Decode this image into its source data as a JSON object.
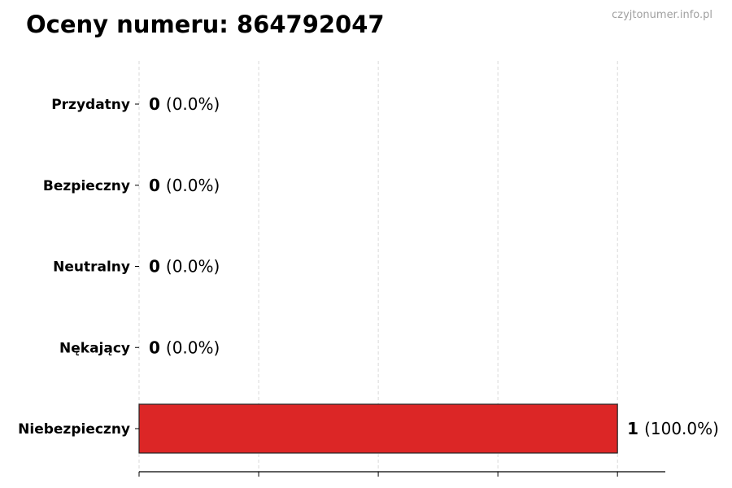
{
  "title": "Oceny numeru: 864792047",
  "watermark": "czyjtonumer.info.pl",
  "chart_data": {
    "type": "bar",
    "orientation": "horizontal",
    "title": "Oceny numeru: 864792047",
    "categories": [
      "Przydatny",
      "Bezpieczny",
      "Neutralny",
      "Nękający",
      "Niebezpieczny"
    ],
    "values": [
      0,
      0,
      0,
      0,
      1
    ],
    "data_labels": [
      {
        "count": "0",
        "percent": "(0.0%)"
      },
      {
        "count": "0",
        "percent": "(0.0%)"
      },
      {
        "count": "0",
        "percent": "(0.0%)"
      },
      {
        "count": "0",
        "percent": "(0.0%)"
      },
      {
        "count": "1",
        "percent": "(100.0%)"
      }
    ],
    "xlim": [
      0,
      1.1
    ],
    "x_gridlines": [
      0,
      0.25,
      0.5,
      0.75,
      1
    ],
    "x_tick_labels_shown": false,
    "grid": true,
    "bar_color": "#dc2626",
    "xlabel": "",
    "ylabel": ""
  }
}
